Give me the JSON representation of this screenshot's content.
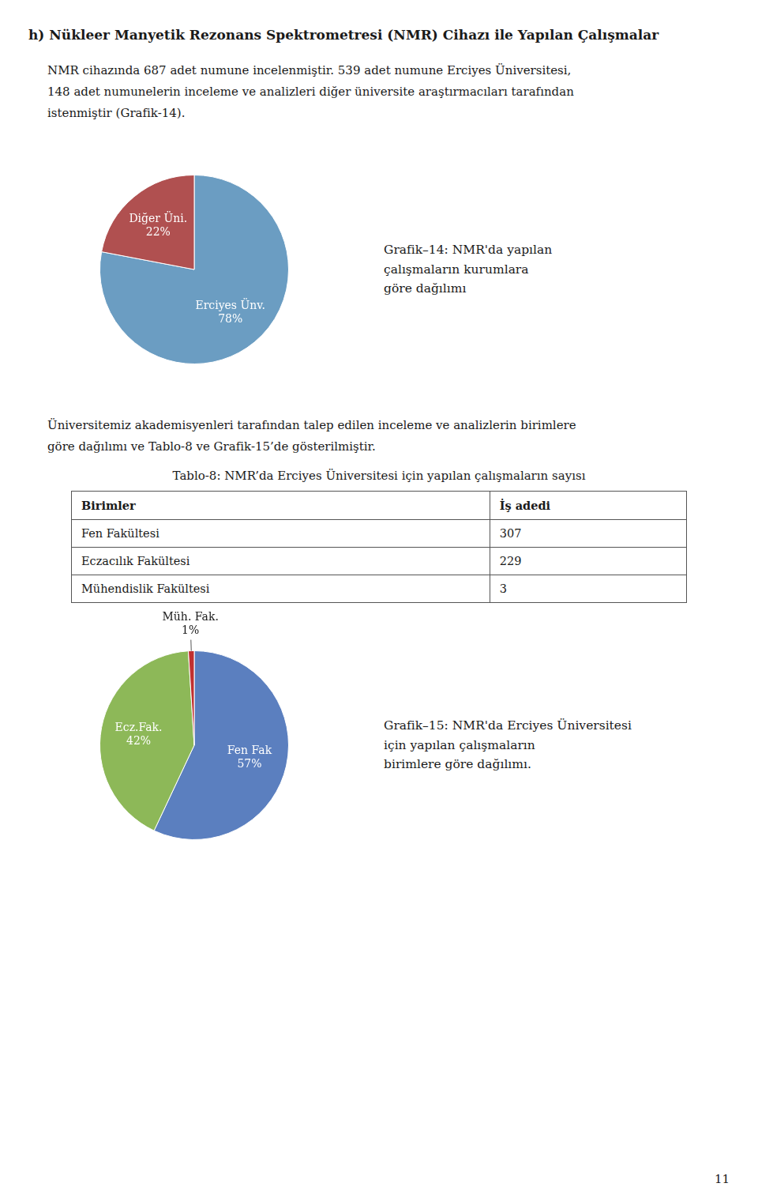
{
  "title": "h) Nükleer Manyetik Rezonans Spektrometresi (NMR) Cihazı ile Yapılan Çalışmalar",
  "paragraphs": [
    "NMR cihazında 687 adet numune incelenmiştir. 539 adet numune Erciyes Üniversitesi,\n148 adet numunelerin inceleme ve analizleri diğer üniversite araştırmacıları tarafından\nistenmiştir (Grafik-14).",
    "Üniversitemiz akademisyenleri tarafından talep edilen inceleme ve analizlerin birimlere\ngöre dağılımı ve Tablo-8 ve Grafik-15’de gösterilmiştir."
  ],
  "table": {
    "title": "Tablo-8: NMR’da Erciyes Üniversitesi için yapılan çalışmaların sayısı",
    "headers": [
      "Birimler",
      "İş adedi"
    ],
    "rows": [
      [
        "Fen Fakültesi",
        "307"
      ],
      [
        "Eczacılık Fakültesi",
        "229"
      ],
      [
        "Mühendislik Fakültesi",
        "3"
      ]
    ]
  },
  "page_number": "11",
  "chart_data": [
    {
      "type": "pie",
      "title": "Grafik–14: NMR'da yapılan\nçalışmaların kurumlara\ngöre dağılımı",
      "categories": [
        "Erciyes Ünv.",
        "Diğer Üni."
      ],
      "values": [
        78,
        22
      ],
      "value_labels": [
        "78%",
        "22%"
      ],
      "colors": [
        "#6B9DC2",
        "#B05050"
      ],
      "data_labels": true
    },
    {
      "type": "pie",
      "title": "Grafik–15: NMR'da Erciyes Üniversitesi\niçin yapılan çalışmaların\nbirimlere göre dağılımı.",
      "categories": [
        "Fen Fak",
        "Ecz.Fak.",
        "Müh. Fak."
      ],
      "values": [
        57,
        42,
        1
      ],
      "value_labels": [
        "57%",
        "42%",
        "1%"
      ],
      "colors": [
        "#5B7FBF",
        "#8DB858",
        "#C03030"
      ],
      "data_labels": true
    }
  ]
}
